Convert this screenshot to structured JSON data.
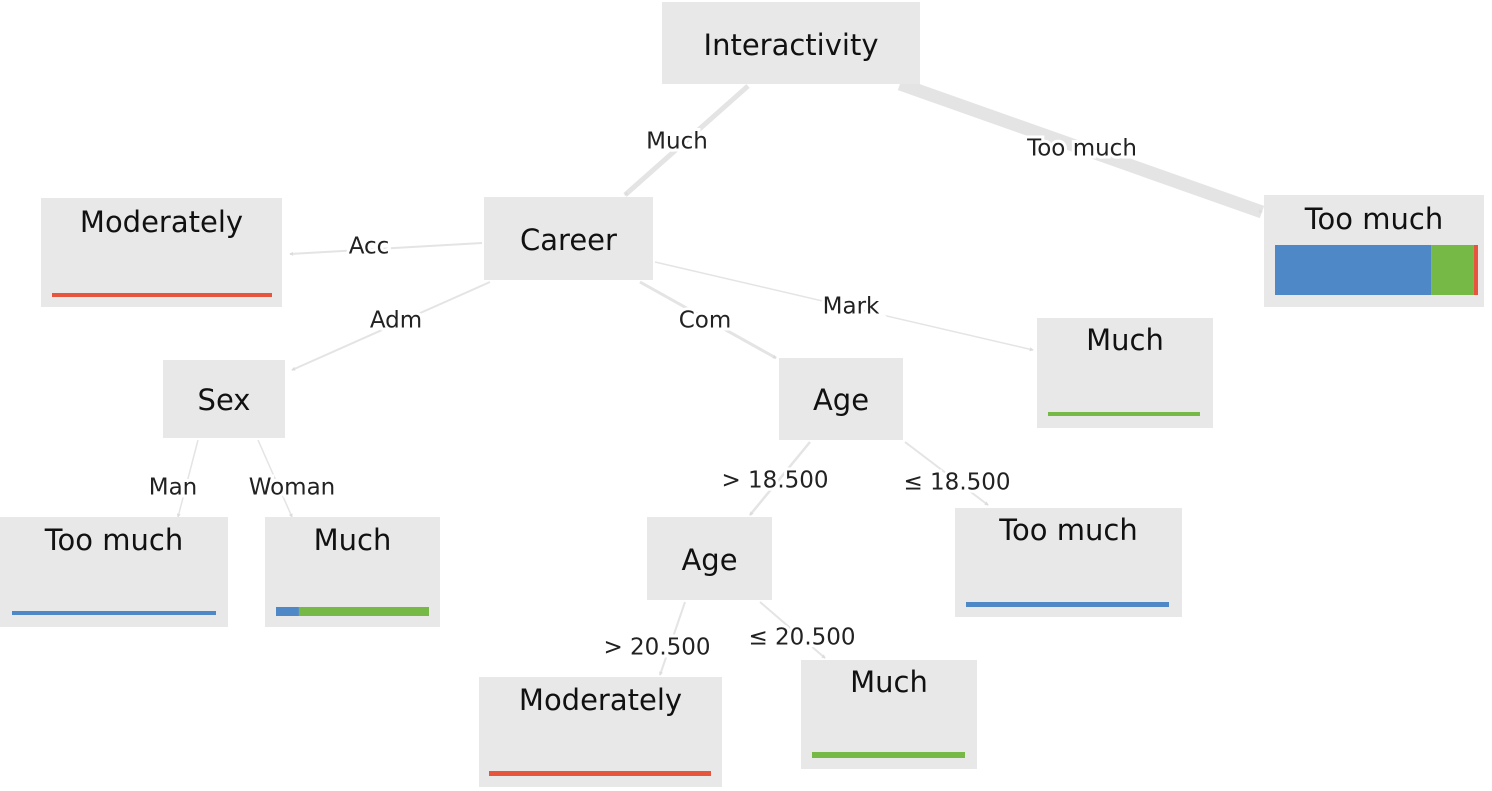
{
  "class_colors": [
    "#4f88c6",
    "#76b947",
    "#e8553e"
  ],
  "nodes": [
    {
      "label": "Interactivity"
    },
    {
      "label": "Career"
    },
    {
      "label": "Moderately",
      "distribution": [
        0,
        0,
        1
      ]
    },
    {
      "label": "Too much",
      "distribution": [
        0.77,
        0.21,
        0.02
      ]
    },
    {
      "label": "Sex"
    },
    {
      "label": "Age"
    },
    {
      "label": "Much",
      "distribution": [
        0,
        1,
        0
      ]
    },
    {
      "label": "Too much",
      "distribution": [
        1,
        0,
        0
      ]
    },
    {
      "label": "Much",
      "distribution": [
        0.15,
        0.85,
        0
      ]
    },
    {
      "label": "Age"
    },
    {
      "label": "Too much",
      "distribution": [
        1,
        0,
        0
      ]
    },
    {
      "label": "Moderately",
      "distribution": [
        0,
        0,
        1
      ]
    },
    {
      "label": "Much",
      "distribution": [
        0,
        1,
        0
      ]
    }
  ],
  "edges": [
    {
      "label": "Much"
    },
    {
      "label": "Too much"
    },
    {
      "label": "Acc"
    },
    {
      "label": "Adm"
    },
    {
      "label": "Com"
    },
    {
      "label": "Mark"
    },
    {
      "label": "Man"
    },
    {
      "label": "Woman"
    },
    {
      "label": "> 18.500"
    },
    {
      "label": "≤ 18.500"
    },
    {
      "label": "> 20.500"
    },
    {
      "label": "≤ 20.500"
    }
  ]
}
